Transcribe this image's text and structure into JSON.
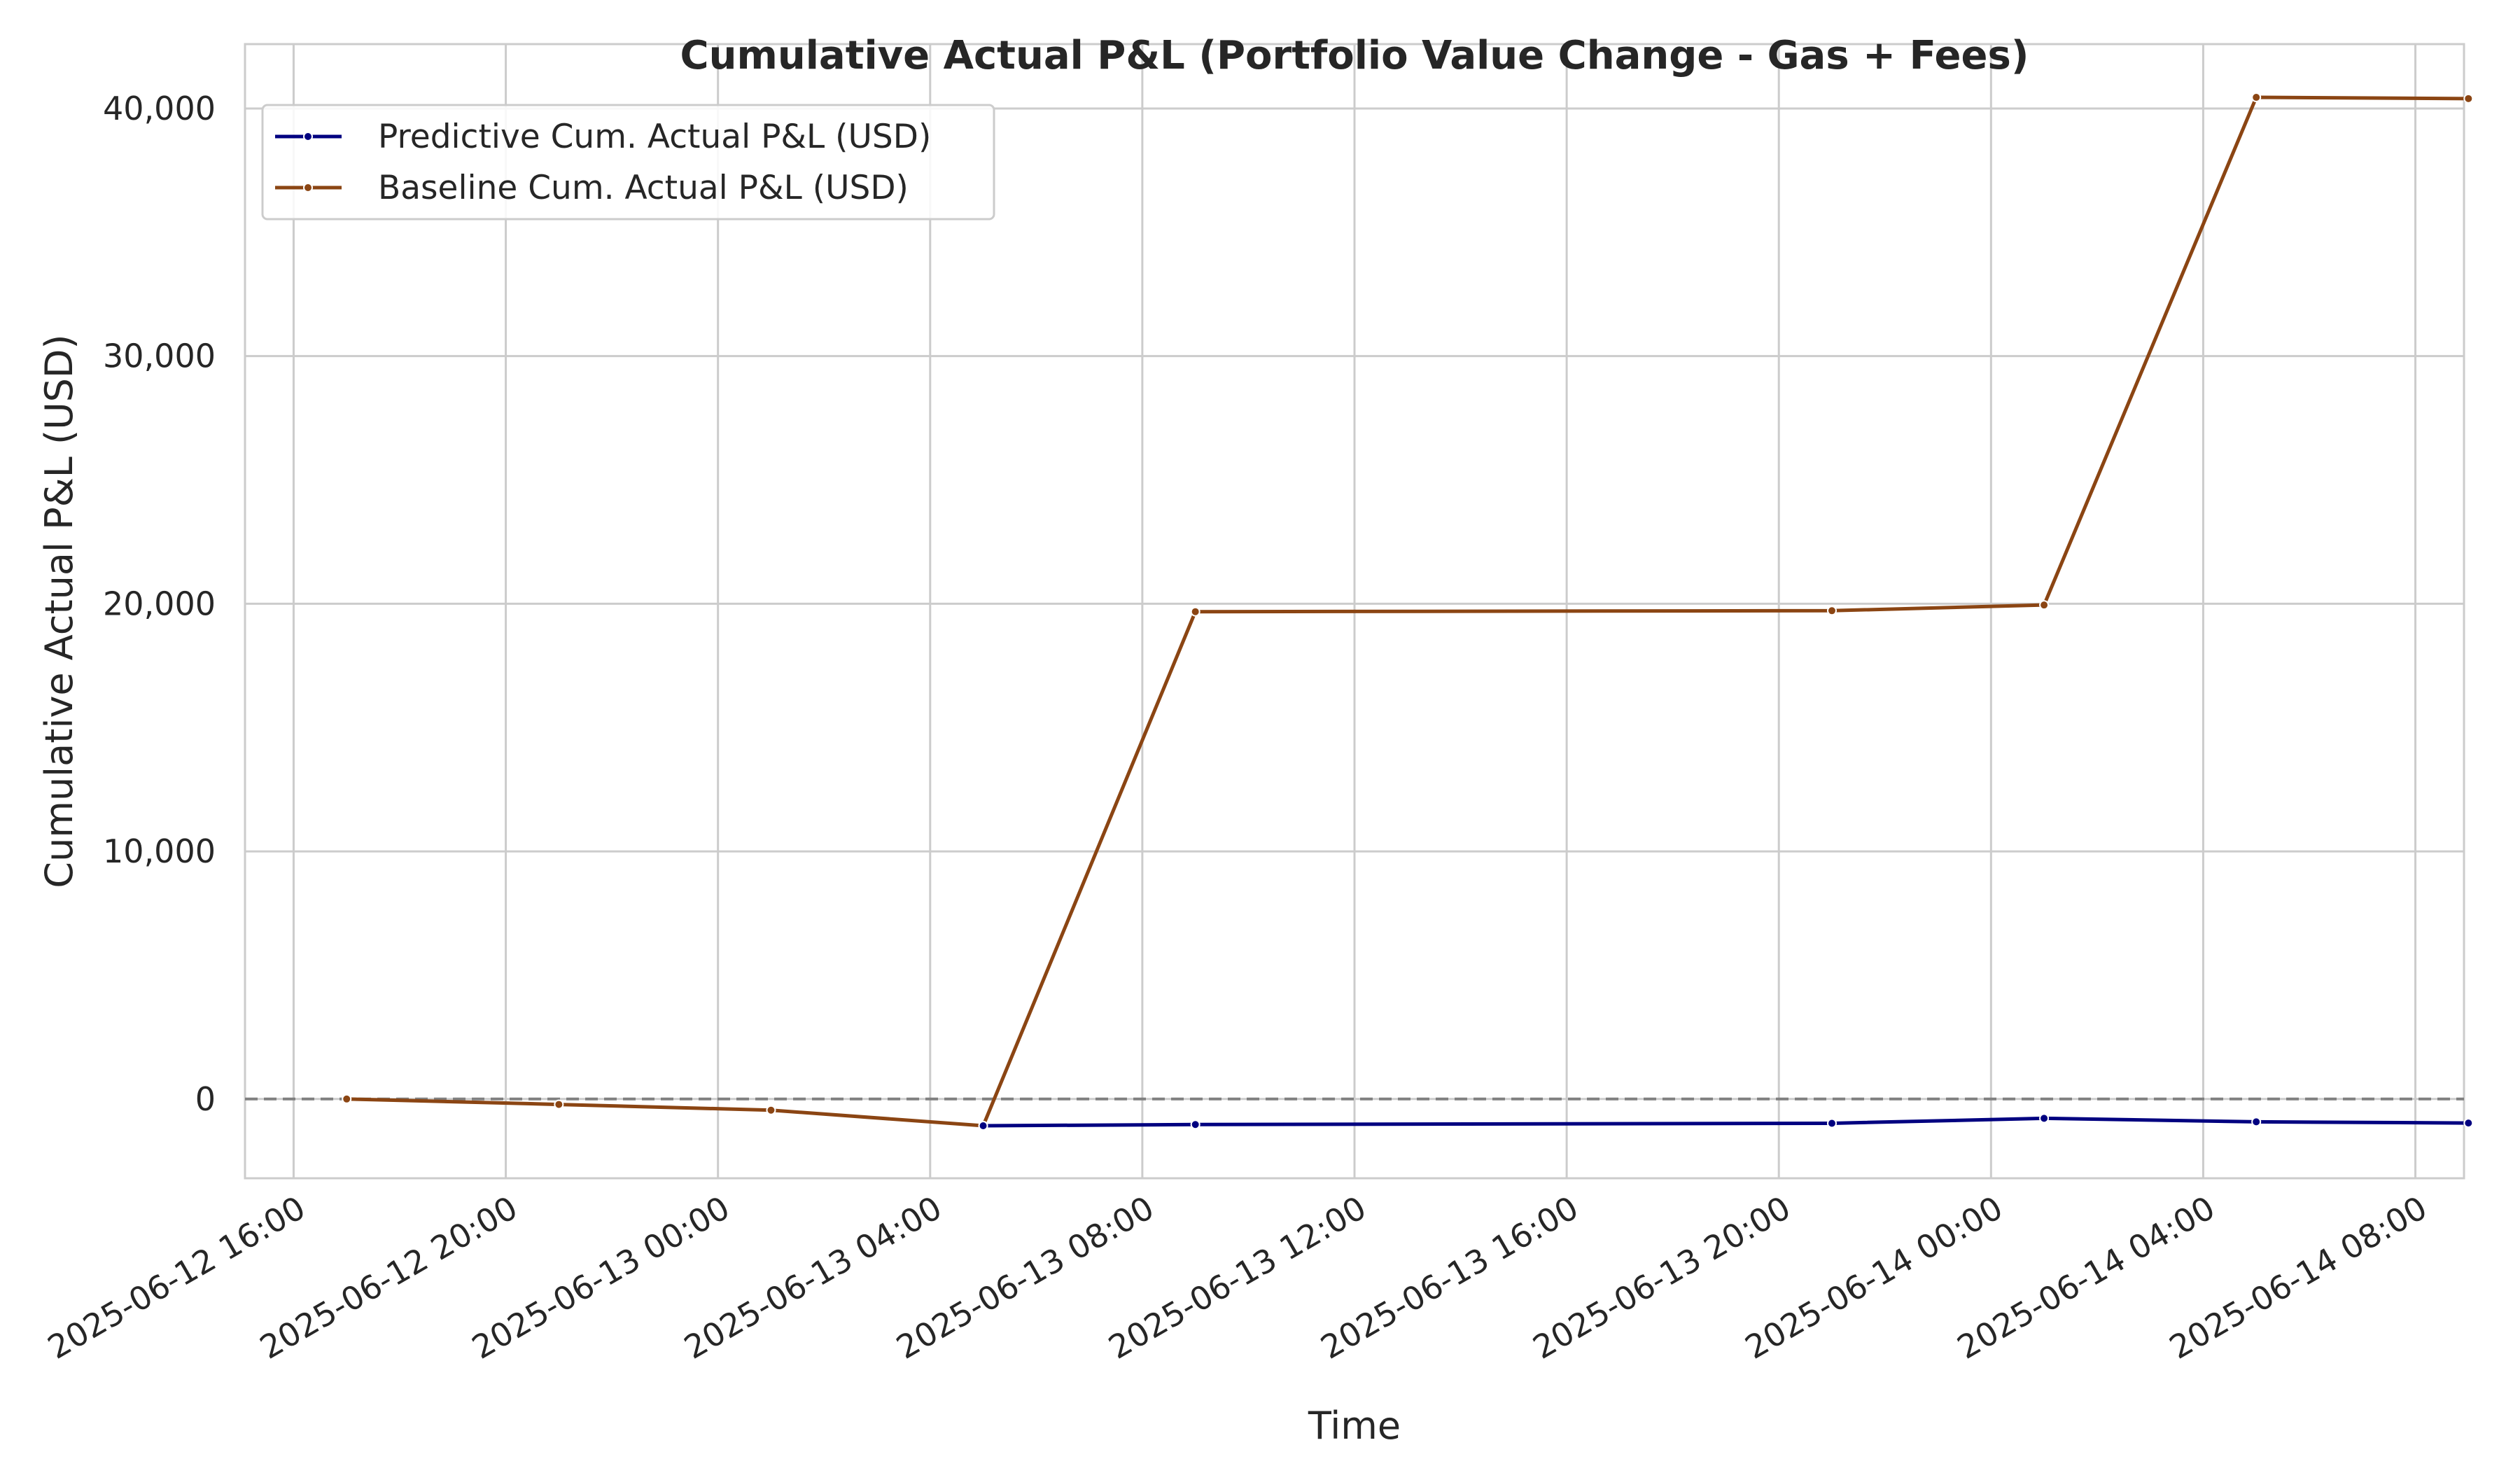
{
  "chart_data": {
    "type": "line",
    "title": "Cumulative Actual P&L (Portfolio Value Change - Gas + Fees)",
    "xlabel": "Time",
    "ylabel": "Cumulative Actual P&L (USD)",
    "x_ticks": [
      "2025-06-12 16:00",
      "2025-06-12 20:00",
      "2025-06-13 00:00",
      "2025-06-13 04:00",
      "2025-06-13 08:00",
      "2025-06-13 12:00",
      "2025-06-13 16:00",
      "2025-06-13 20:00",
      "2025-06-14 00:00",
      "2025-06-14 04:00",
      "2025-06-14 08:00"
    ],
    "y_ticks": [
      0,
      10000,
      20000,
      30000,
      40000
    ],
    "y_tick_labels": [
      "0",
      "10,000",
      "20,000",
      "30,000",
      "40,000"
    ],
    "xlim": [
      "2025-06-12 15:05",
      "2025-06-14 08:55"
    ],
    "ylim": [
      -3200,
      42600
    ],
    "grid": true,
    "legend_position": "top-left",
    "reference_line": {
      "y": 0,
      "style": "dashed",
      "color": "#808080"
    },
    "x": [
      "2025-06-12 17:00",
      "2025-06-12 21:00",
      "2025-06-13 01:00",
      "2025-06-13 05:00",
      "2025-06-13 09:00",
      "2025-06-13 21:00",
      "2025-06-14 01:00",
      "2025-06-14 05:00",
      "2025-06-14 09:00"
    ],
    "series": [
      {
        "name": "Predictive Cum. Actual P&L (USD)",
        "color": "#000080",
        "values": [
          null,
          null,
          null,
          -1080,
          -1030,
          -980,
          -780,
          -920,
          -970
        ]
      },
      {
        "name": "Baseline Cum. Actual P&L (USD)",
        "color": "#8B4513",
        "values": [
          0,
          -220,
          -450,
          -1080,
          19680,
          19720,
          19950,
          40450,
          40400
        ]
      }
    ]
  }
}
